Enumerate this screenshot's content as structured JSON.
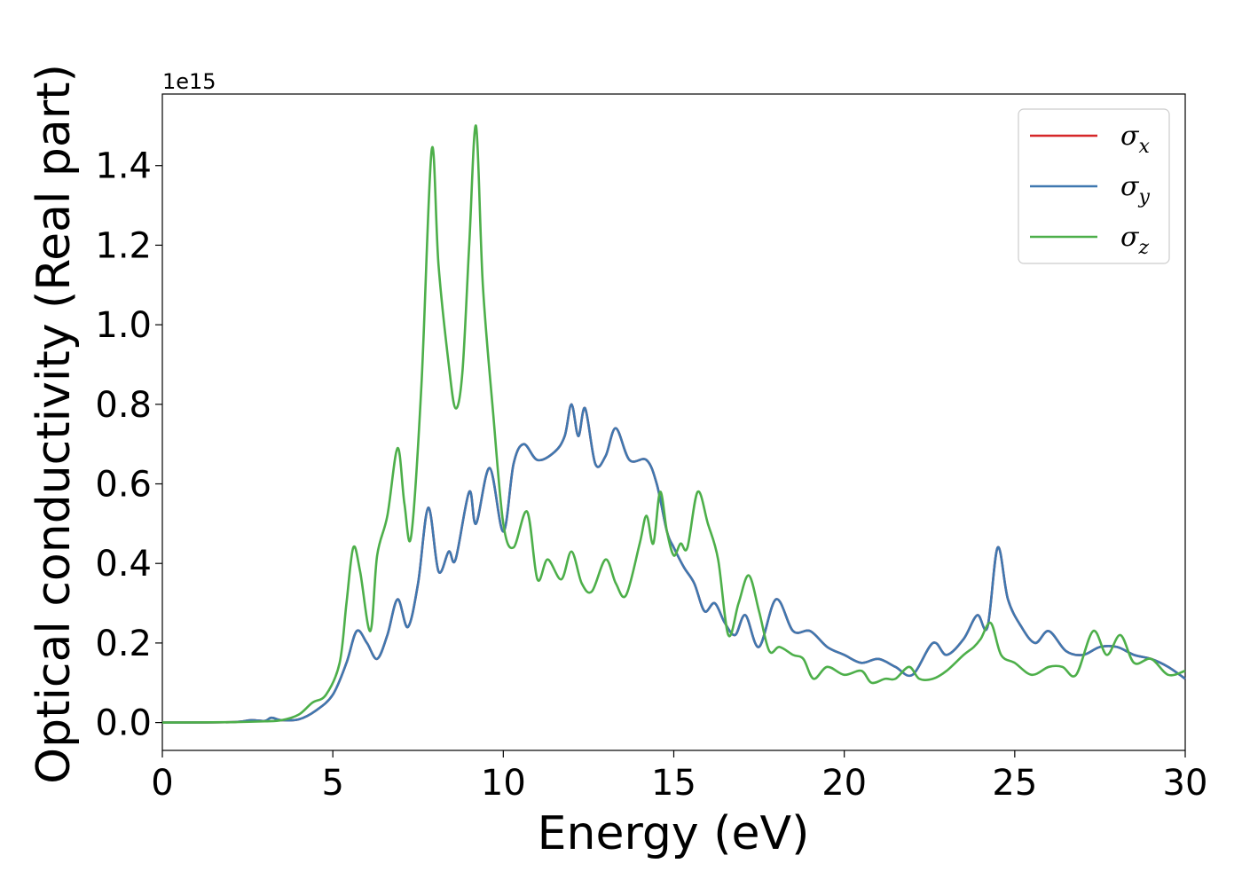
{
  "chart_data": {
    "type": "line",
    "xlabel": "Energy (eV)",
    "ylabel": "Optical conductivity (Real part)",
    "y_offset_label": "1e15",
    "xlim": [
      0,
      30
    ],
    "ylim": [
      -0.07,
      1.58
    ],
    "x_ticks": [
      0,
      5,
      10,
      15,
      20,
      25,
      30
    ],
    "y_ticks": [
      0.0,
      0.2,
      0.4,
      0.6,
      0.8,
      1.0,
      1.2,
      1.4
    ],
    "y_tick_labels": [
      "0.0",
      "0.2",
      "0.4",
      "0.6",
      "0.8",
      "1.0",
      "1.2",
      "1.4"
    ],
    "grid": false,
    "legend_position": "top-right",
    "series": [
      {
        "name": "σx",
        "symbol": "σ",
        "subscript": "x",
        "color": "#d62728",
        "points": [
          [
            0,
            0
          ],
          [
            2,
            0.001
          ],
          [
            2.6,
            0.006
          ],
          [
            3.0,
            0.004
          ],
          [
            3.2,
            0.012
          ],
          [
            3.5,
            0.006
          ],
          [
            4.0,
            0.008
          ],
          [
            4.5,
            0.03
          ],
          [
            5.0,
            0.07
          ],
          [
            5.4,
            0.15
          ],
          [
            5.7,
            0.23
          ],
          [
            6.0,
            0.2
          ],
          [
            6.3,
            0.16
          ],
          [
            6.6,
            0.22
          ],
          [
            6.9,
            0.31
          ],
          [
            7.2,
            0.24
          ],
          [
            7.5,
            0.35
          ],
          [
            7.8,
            0.54
          ],
          [
            8.1,
            0.38
          ],
          [
            8.4,
            0.43
          ],
          [
            8.6,
            0.41
          ],
          [
            9.0,
            0.58
          ],
          [
            9.2,
            0.5
          ],
          [
            9.6,
            0.64
          ],
          [
            10.0,
            0.48
          ],
          [
            10.3,
            0.65
          ],
          [
            10.6,
            0.7
          ],
          [
            11.0,
            0.66
          ],
          [
            11.5,
            0.68
          ],
          [
            11.8,
            0.72
          ],
          [
            12.0,
            0.8
          ],
          [
            12.2,
            0.72
          ],
          [
            12.4,
            0.79
          ],
          [
            12.7,
            0.65
          ],
          [
            13.0,
            0.67
          ],
          [
            13.3,
            0.74
          ],
          [
            13.7,
            0.66
          ],
          [
            14.2,
            0.66
          ],
          [
            14.5,
            0.6
          ],
          [
            14.8,
            0.48
          ],
          [
            15.0,
            0.44
          ],
          [
            15.3,
            0.39
          ],
          [
            15.6,
            0.35
          ],
          [
            15.9,
            0.28
          ],
          [
            16.2,
            0.3
          ],
          [
            16.5,
            0.25
          ],
          [
            16.8,
            0.22
          ],
          [
            17.1,
            0.27
          ],
          [
            17.5,
            0.19
          ],
          [
            18.0,
            0.31
          ],
          [
            18.5,
            0.23
          ],
          [
            19.0,
            0.23
          ],
          [
            19.5,
            0.19
          ],
          [
            20.0,
            0.17
          ],
          [
            20.5,
            0.15
          ],
          [
            21.0,
            0.16
          ],
          [
            21.5,
            0.14
          ],
          [
            22.0,
            0.12
          ],
          [
            22.6,
            0.2
          ],
          [
            23.0,
            0.17
          ],
          [
            23.5,
            0.21
          ],
          [
            23.9,
            0.27
          ],
          [
            24.2,
            0.24
          ],
          [
            24.5,
            0.44
          ],
          [
            24.8,
            0.31
          ],
          [
            25.2,
            0.24
          ],
          [
            25.6,
            0.2
          ],
          [
            26.0,
            0.23
          ],
          [
            26.5,
            0.18
          ],
          [
            27.0,
            0.17
          ],
          [
            27.5,
            0.19
          ],
          [
            28.0,
            0.19
          ],
          [
            28.5,
            0.17
          ],
          [
            29.0,
            0.16
          ],
          [
            29.5,
            0.14
          ],
          [
            30.0,
            0.11
          ]
        ]
      },
      {
        "name": "σy",
        "symbol": "σ",
        "subscript": "y",
        "color": "#3f78b0",
        "points": [
          [
            0,
            0
          ],
          [
            2,
            0.001
          ],
          [
            2.6,
            0.006
          ],
          [
            3.0,
            0.004
          ],
          [
            3.2,
            0.012
          ],
          [
            3.5,
            0.006
          ],
          [
            4.0,
            0.008
          ],
          [
            4.5,
            0.03
          ],
          [
            5.0,
            0.07
          ],
          [
            5.4,
            0.15
          ],
          [
            5.7,
            0.23
          ],
          [
            6.0,
            0.2
          ],
          [
            6.3,
            0.16
          ],
          [
            6.6,
            0.22
          ],
          [
            6.9,
            0.31
          ],
          [
            7.2,
            0.24
          ],
          [
            7.5,
            0.35
          ],
          [
            7.8,
            0.54
          ],
          [
            8.1,
            0.38
          ],
          [
            8.4,
            0.43
          ],
          [
            8.6,
            0.41
          ],
          [
            9.0,
            0.58
          ],
          [
            9.2,
            0.5
          ],
          [
            9.6,
            0.64
          ],
          [
            10.0,
            0.48
          ],
          [
            10.3,
            0.65
          ],
          [
            10.6,
            0.7
          ],
          [
            11.0,
            0.66
          ],
          [
            11.5,
            0.68
          ],
          [
            11.8,
            0.72
          ],
          [
            12.0,
            0.8
          ],
          [
            12.2,
            0.72
          ],
          [
            12.4,
            0.79
          ],
          [
            12.7,
            0.65
          ],
          [
            13.0,
            0.67
          ],
          [
            13.3,
            0.74
          ],
          [
            13.7,
            0.66
          ],
          [
            14.2,
            0.66
          ],
          [
            14.5,
            0.6
          ],
          [
            14.8,
            0.48
          ],
          [
            15.0,
            0.44
          ],
          [
            15.3,
            0.39
          ],
          [
            15.6,
            0.35
          ],
          [
            15.9,
            0.28
          ],
          [
            16.2,
            0.3
          ],
          [
            16.5,
            0.25
          ],
          [
            16.8,
            0.22
          ],
          [
            17.1,
            0.27
          ],
          [
            17.5,
            0.19
          ],
          [
            18.0,
            0.31
          ],
          [
            18.5,
            0.23
          ],
          [
            19.0,
            0.23
          ],
          [
            19.5,
            0.19
          ],
          [
            20.0,
            0.17
          ],
          [
            20.5,
            0.15
          ],
          [
            21.0,
            0.16
          ],
          [
            21.5,
            0.14
          ],
          [
            22.0,
            0.12
          ],
          [
            22.6,
            0.2
          ],
          [
            23.0,
            0.17
          ],
          [
            23.5,
            0.21
          ],
          [
            23.9,
            0.27
          ],
          [
            24.2,
            0.24
          ],
          [
            24.5,
            0.44
          ],
          [
            24.8,
            0.31
          ],
          [
            25.2,
            0.24
          ],
          [
            25.6,
            0.2
          ],
          [
            26.0,
            0.23
          ],
          [
            26.5,
            0.18
          ],
          [
            27.0,
            0.17
          ],
          [
            27.5,
            0.19
          ],
          [
            28.0,
            0.19
          ],
          [
            28.5,
            0.17
          ],
          [
            29.0,
            0.16
          ],
          [
            29.5,
            0.14
          ],
          [
            30.0,
            0.11
          ]
        ]
      },
      {
        "name": "σz",
        "symbol": "σ",
        "subscript": "z",
        "color": "#4daf4a",
        "points": [
          [
            0,
            0
          ],
          [
            2,
            0.001
          ],
          [
            3.0,
            0.003
          ],
          [
            3.5,
            0.006
          ],
          [
            4.0,
            0.02
          ],
          [
            4.4,
            0.05
          ],
          [
            4.8,
            0.07
          ],
          [
            5.2,
            0.15
          ],
          [
            5.4,
            0.3
          ],
          [
            5.6,
            0.44
          ],
          [
            5.8,
            0.38
          ],
          [
            6.1,
            0.23
          ],
          [
            6.3,
            0.42
          ],
          [
            6.6,
            0.52
          ],
          [
            6.9,
            0.69
          ],
          [
            7.1,
            0.55
          ],
          [
            7.3,
            0.47
          ],
          [
            7.6,
            0.85
          ],
          [
            7.9,
            1.44
          ],
          [
            8.1,
            1.15
          ],
          [
            8.4,
            0.9
          ],
          [
            8.6,
            0.79
          ],
          [
            8.8,
            0.88
          ],
          [
            9.0,
            1.2
          ],
          [
            9.2,
            1.5
          ],
          [
            9.4,
            1.1
          ],
          [
            9.7,
            0.78
          ],
          [
            10.0,
            0.5
          ],
          [
            10.3,
            0.44
          ],
          [
            10.7,
            0.53
          ],
          [
            11.0,
            0.36
          ],
          [
            11.3,
            0.41
          ],
          [
            11.7,
            0.36
          ],
          [
            12.0,
            0.43
          ],
          [
            12.3,
            0.35
          ],
          [
            12.6,
            0.33
          ],
          [
            13.0,
            0.41
          ],
          [
            13.3,
            0.35
          ],
          [
            13.6,
            0.32
          ],
          [
            14.0,
            0.45
          ],
          [
            14.2,
            0.52
          ],
          [
            14.4,
            0.45
          ],
          [
            14.6,
            0.58
          ],
          [
            14.8,
            0.48
          ],
          [
            15.0,
            0.42
          ],
          [
            15.2,
            0.45
          ],
          [
            15.4,
            0.44
          ],
          [
            15.7,
            0.58
          ],
          [
            16.0,
            0.5
          ],
          [
            16.3,
            0.41
          ],
          [
            16.6,
            0.22
          ],
          [
            16.9,
            0.3
          ],
          [
            17.2,
            0.37
          ],
          [
            17.5,
            0.28
          ],
          [
            17.8,
            0.18
          ],
          [
            18.1,
            0.19
          ],
          [
            18.5,
            0.17
          ],
          [
            18.8,
            0.16
          ],
          [
            19.1,
            0.11
          ],
          [
            19.5,
            0.14
          ],
          [
            20.0,
            0.12
          ],
          [
            20.5,
            0.13
          ],
          [
            20.8,
            0.1
          ],
          [
            21.2,
            0.11
          ],
          [
            21.5,
            0.11
          ],
          [
            21.9,
            0.14
          ],
          [
            22.2,
            0.11
          ],
          [
            22.6,
            0.11
          ],
          [
            23.0,
            0.13
          ],
          [
            23.5,
            0.17
          ],
          [
            23.8,
            0.19
          ],
          [
            24.0,
            0.21
          ],
          [
            24.3,
            0.25
          ],
          [
            24.6,
            0.17
          ],
          [
            25.0,
            0.15
          ],
          [
            25.5,
            0.12
          ],
          [
            26.0,
            0.14
          ],
          [
            26.4,
            0.14
          ],
          [
            26.8,
            0.12
          ],
          [
            27.3,
            0.23
          ],
          [
            27.7,
            0.17
          ],
          [
            28.1,
            0.22
          ],
          [
            28.5,
            0.15
          ],
          [
            29.0,
            0.16
          ],
          [
            29.5,
            0.12
          ],
          [
            30.0,
            0.13
          ]
        ]
      }
    ]
  }
}
